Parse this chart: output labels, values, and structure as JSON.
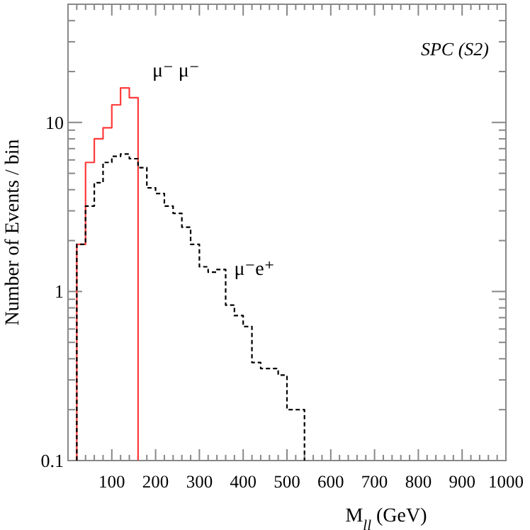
{
  "chart_data": {
    "type": "histogram",
    "xlabel": "M$_{ll}$ (GeV)",
    "ylabel": "Number of Events / bin",
    "bins": [
      20,
      40,
      60,
      80,
      100,
      120,
      140,
      160,
      180,
      200,
      220,
      240,
      260,
      280,
      300,
      320,
      340,
      360,
      380,
      400,
      420,
      440,
      460,
      480,
      500,
      520,
      540
    ],
    "series": [
      {
        "name": "μ⁻ μ⁻",
        "color": "#ff3b3b",
        "line_style": "solid",
        "bins": [
          20,
          40,
          60,
          80,
          100,
          120,
          140,
          160
        ],
        "values": [
          1.9,
          5.8,
          8.0,
          9.3,
          12.7,
          16,
          14
        ]
      },
      {
        "name": "μ⁻e⁺",
        "color": "#000000",
        "line_style": "dashed",
        "values": [
          1.9,
          3.2,
          4.4,
          5.8,
          6.3,
          6.5,
          6.1,
          5.4,
          4.1,
          3.8,
          3.2,
          2.9,
          2.4,
          1.9,
          1.4,
          1.3,
          1.35,
          0.83,
          0.72,
          0.62,
          0.38,
          0.35,
          0.35,
          0.32,
          0.2,
          0.2
        ]
      }
    ],
    "annotations": [
      "SPC (S2)"
    ],
    "log": "y",
    "xlim": [
      0,
      1000
    ],
    "ylim": [
      0.1,
      50
    ],
    "xticks": [
      {
        "value": 20,
        "label": null
      },
      {
        "value": 40,
        "label": null
      },
      {
        "value": 60,
        "label": null
      },
      {
        "value": 80,
        "label": null
      },
      100,
      {
        "value": 120,
        "label": null
      },
      {
        "value": 140,
        "label": null
      },
      {
        "value": 160,
        "label": null
      },
      {
        "value": 180,
        "label": null
      },
      200,
      {
        "value": 220,
        "label": null
      },
      {
        "value": 240,
        "label": null
      },
      {
        "value": 260,
        "label": null
      },
      {
        "value": 280,
        "label": null
      },
      300,
      {
        "value": 320,
        "label": null
      },
      {
        "value": 340,
        "label": null
      },
      {
        "value": 360,
        "label": null
      },
      {
        "value": 380,
        "label": null
      },
      400,
      {
        "value": 420,
        "label": null
      },
      {
        "value": 440,
        "label": null
      },
      {
        "value": 460,
        "label": null
      },
      {
        "value": 480,
        "label": null
      },
      500,
      {
        "value": 520,
        "label": null
      },
      {
        "value": 540,
        "label": null
      },
      {
        "value": 560,
        "label": null
      },
      {
        "value": 580,
        "label": null
      },
      600,
      {
        "value": 620,
        "label": null
      },
      {
        "value": 640,
        "label": null
      },
      {
        "value": 660,
        "label": null
      },
      {
        "value": 680,
        "label": null
      },
      700,
      {
        "value": 720,
        "label": null
      },
      {
        "value": 740,
        "label": null
      },
      {
        "value": 760,
        "label": null
      },
      {
        "value": 780,
        "label": null
      },
      800,
      {
        "value": 820,
        "label": null
      },
      {
        "value": 840,
        "label": null
      },
      {
        "value": 860,
        "label": null
      },
      {
        "value": 880,
        "label": null
      },
      900,
      {
        "value": 920,
        "label": null
      },
      {
        "value": 940,
        "label": null
      },
      {
        "value": 960,
        "label": null
      },
      {
        "value": 980,
        "label": null
      },
      1000
    ],
    "yticks": [
      0.1,
      {
        "value": 0.2,
        "label": null
      },
      {
        "value": 0.3,
        "label": null
      },
      {
        "value": 0.4,
        "label": null
      },
      {
        "value": 0.5,
        "label": null
      },
      {
        "value": 0.6,
        "label": null
      },
      {
        "value": 0.7,
        "label": null
      },
      {
        "value": 0.8,
        "label": null
      },
      {
        "value": 0.9,
        "label": null
      },
      1,
      {
        "value": 2,
        "label": null
      },
      {
        "value": 3,
        "label": null
      },
      {
        "value": 4,
        "label": null
      },
      {
        "value": 5,
        "label": null
      },
      {
        "value": 6,
        "label": null
      },
      {
        "value": 7,
        "label": null
      },
      {
        "value": 8,
        "label": null
      },
      {
        "value": 9,
        "label": null
      },
      10,
      {
        "value": 20,
        "label": null
      },
      {
        "value": 30,
        "label": null
      },
      {
        "value": 40,
        "label": null
      },
      {
        "value": 50,
        "label": null
      }
    ],
    "grid": false
  }
}
